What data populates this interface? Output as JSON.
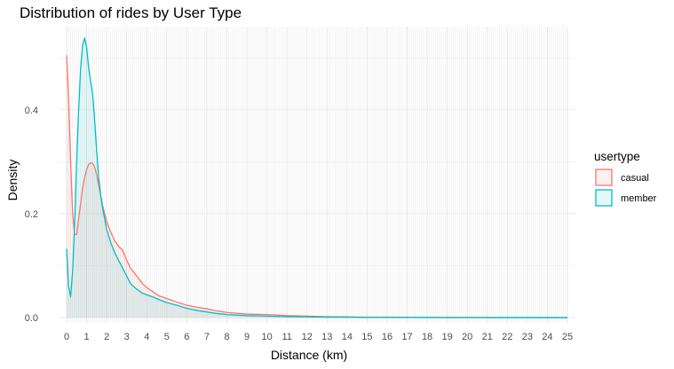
{
  "chart_data": {
    "type": "area",
    "title": "Distribution of rides by User Type",
    "xlabel": "Distance (km)",
    "ylabel": "Density",
    "xlim": [
      -0.4,
      25.4
    ],
    "ylim": [
      -0.01,
      0.56
    ],
    "x_ticks": [
      0,
      1,
      2,
      3,
      4,
      5,
      6,
      7,
      8,
      9,
      10,
      11,
      12,
      13,
      14,
      15,
      16,
      17,
      18,
      19,
      20,
      21,
      22,
      23,
      24,
      25
    ],
    "y_ticks": [
      0.0,
      0.2,
      0.4
    ],
    "y_tick_labels": [
      "0.0",
      "0.2",
      "0.4"
    ],
    "grid": true,
    "legend": {
      "title": "usertype",
      "position": "right"
    },
    "series": [
      {
        "name": "casual",
        "color": "#f8766d",
        "fill": "#fdeceb",
        "x": [
          0,
          0.1,
          0.2,
          0.3,
          0.4,
          0.5,
          0.6,
          0.7,
          0.8,
          0.9,
          1.0,
          1.1,
          1.2,
          1.3,
          1.4,
          1.5,
          1.6,
          1.7,
          1.8,
          1.9,
          2.0,
          2.2,
          2.4,
          2.6,
          2.8,
          3.0,
          3.2,
          3.4,
          3.6,
          3.8,
          4.0,
          4.3,
          4.6,
          5.0,
          5.5,
          6.0,
          6.5,
          7.0,
          7.5,
          8.0,
          9.0,
          10.0,
          11.0,
          12.0,
          13.0,
          14.0,
          15.0,
          16.0,
          18.0,
          20.0,
          22.0,
          25.0
        ],
        "y": [
          0.505,
          0.42,
          0.3,
          0.2,
          0.16,
          0.16,
          0.19,
          0.22,
          0.25,
          0.27,
          0.285,
          0.295,
          0.298,
          0.297,
          0.29,
          0.275,
          0.255,
          0.235,
          0.215,
          0.2,
          0.185,
          0.165,
          0.148,
          0.137,
          0.13,
          0.11,
          0.095,
          0.085,
          0.075,
          0.065,
          0.058,
          0.05,
          0.042,
          0.037,
          0.03,
          0.024,
          0.02,
          0.017,
          0.013,
          0.01,
          0.007,
          0.006,
          0.004,
          0.003,
          0.002,
          0.0015,
          0.001,
          0.001,
          0.0005,
          0.0003,
          0.0002,
          0.0001
        ]
      },
      {
        "name": "member",
        "color": "#00bfc4",
        "fill": "#e0f5f5",
        "x": [
          0,
          0.1,
          0.2,
          0.3,
          0.4,
          0.5,
          0.6,
          0.7,
          0.8,
          0.9,
          1.0,
          1.1,
          1.2,
          1.3,
          1.4,
          1.5,
          1.6,
          1.7,
          1.8,
          1.9,
          2.0,
          2.2,
          2.4,
          2.6,
          2.8,
          3.0,
          3.2,
          3.4,
          3.6,
          3.8,
          4.0,
          4.3,
          4.6,
          5.0,
          5.5,
          6.0,
          6.5,
          7.0,
          7.5,
          8.0,
          9.0,
          10.0,
          11.0,
          12.0,
          13.0,
          14.0,
          15.0,
          16.0,
          18.0,
          20.0,
          22.0,
          25.0
        ],
        "y": [
          0.133,
          0.06,
          0.04,
          0.09,
          0.18,
          0.3,
          0.4,
          0.48,
          0.525,
          0.538,
          0.52,
          0.48,
          0.455,
          0.43,
          0.38,
          0.32,
          0.27,
          0.235,
          0.21,
          0.19,
          0.17,
          0.145,
          0.125,
          0.11,
          0.095,
          0.08,
          0.065,
          0.058,
          0.052,
          0.047,
          0.044,
          0.04,
          0.035,
          0.029,
          0.024,
          0.018,
          0.014,
          0.011,
          0.008,
          0.006,
          0.004,
          0.003,
          0.002,
          0.0015,
          0.001,
          0.001,
          0.0005,
          0.0004,
          0.0003,
          0.0002,
          0.0001,
          0.0001
        ]
      }
    ]
  }
}
